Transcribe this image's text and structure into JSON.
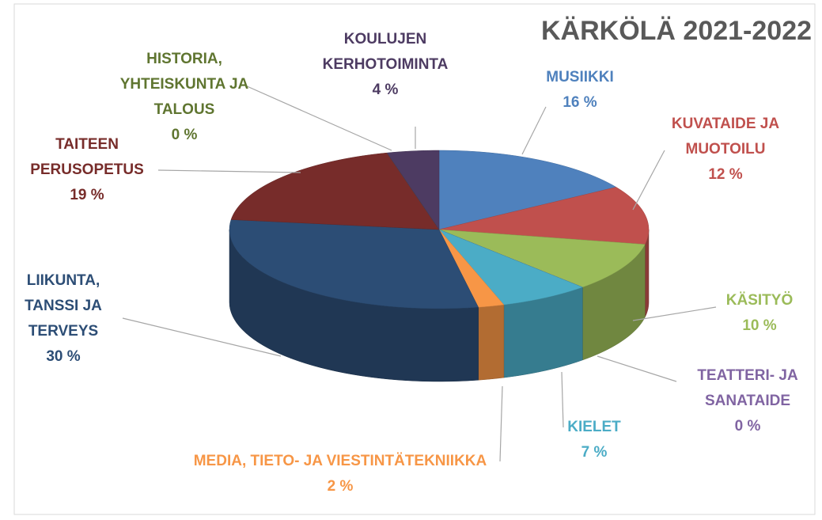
{
  "chart_data": {
    "type": "pie",
    "title": "KÄRKÖLÄ 2021-2022",
    "categories": [
      "MUSIIKKI",
      "KUVATAIDE JA MUOTOILU",
      "KÄSITYÖ",
      "TEATTERI- JA SANATAIDE",
      "KIELET",
      "MEDIA, TIETO- JA VIESTINTÄTEKNIIKKA",
      "LIIKUNTA, TANSSI JA TERVEYS",
      "TAITEEN PERUSOPETUS",
      "HISTORIA, YHTEISKUNTA JA TALOUS",
      "KOULUJEN KERHOTOIMINTA"
    ],
    "values": [
      16,
      12,
      10,
      0,
      7,
      2,
      30,
      19,
      0,
      4
    ],
    "value_labels": [
      "16 %",
      "12 %",
      "10 %",
      "0 %",
      "7 %",
      "2 %",
      "30 %",
      "19 %",
      "0 %",
      "4 %"
    ],
    "colors": [
      "#4f81bd",
      "#c0504d",
      "#9bbb59",
      "#8064a2",
      "#4bacc6",
      "#f79646",
      "#2c4d75",
      "#772c2a",
      "#5f7530",
      "#4d3b62"
    ]
  }
}
